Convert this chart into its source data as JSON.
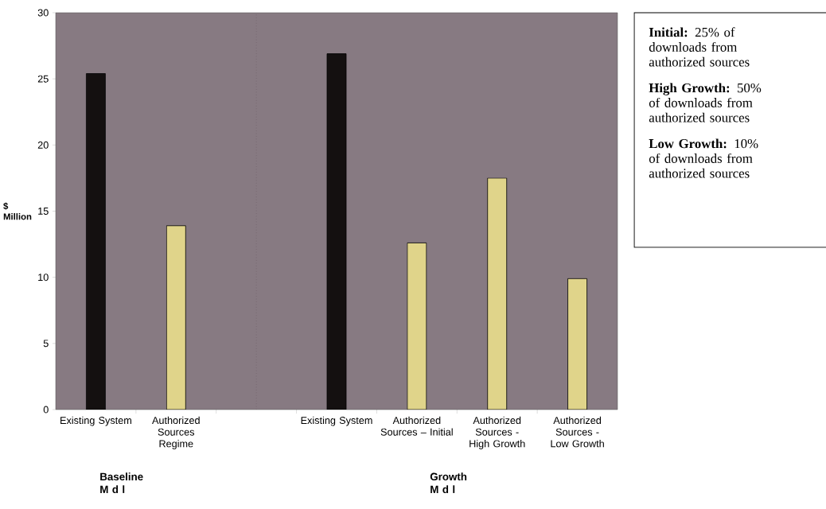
{
  "chart_data": {
    "type": "bar",
    "ylabel": "$ Million",
    "categories": [
      "Existing System",
      "Authorized Sources Regime",
      null,
      "Existing System",
      "Authorized Sources – Initial",
      "Authorized Sources - High Growth",
      "Authorized Sources - Low Growth"
    ],
    "values": [
      25.4,
      13.9,
      null,
      26.9,
      12.6,
      17.5,
      9.9
    ],
    "colors": [
      "#141010",
      "#e0d48a",
      "#e0d48a",
      "#141010",
      "#e0d48a",
      "#e0d48a",
      "#e0d48a"
    ],
    "ylim": [
      0,
      30
    ],
    "yticks": [
      0,
      5,
      10,
      15,
      20,
      25,
      30
    ],
    "annotations": [
      "**Initial:** 25% of downloads from authorized sources",
      "**High Growth:** 50% of downloads from authorized sources",
      "**Low Growth:** 10% of downloads from authorized sources",
      "**Baseline M d l**",
      "**Growth M d l**"
    ]
  }
}
